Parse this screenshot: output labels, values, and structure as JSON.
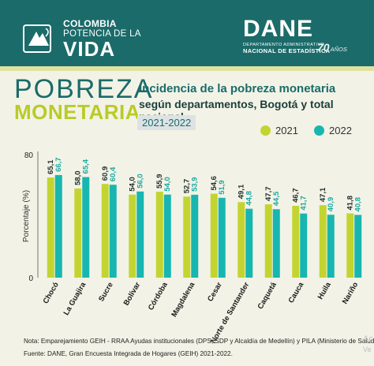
{
  "header": {
    "brand_line1": "COLOMBIA",
    "brand_line2": "POTENCIA DE LA",
    "brand_line3": "VIDA",
    "dane_name": "DANE",
    "dane_sub1": "DEPARTAMENTO ADMINISTRATIVO",
    "dane_sub2": "NACIONAL DE ESTADÍSTICA",
    "anniversary_number": "70",
    "anniversary_text": "AÑOS"
  },
  "title_main_line1": "POBREZA",
  "title_main_line2": "MONETARIA",
  "subtitle_line1": "Incidencia de la pobreza monetaria",
  "subtitle_line2": "según departamentos, Bogotá y total nacional",
  "years_badge": "2021-2022",
  "colors": {
    "teal": "#1b6b6a",
    "lime": "#c3d431",
    "cyan": "#18b6b0",
    "background": "#f2f3e6"
  },
  "chart_data": {
    "type": "bar",
    "ylabel": "Porcentaje (%)",
    "ylim": [
      0,
      80
    ],
    "yticks": [
      "0",
      "80"
    ],
    "categories": [
      "Chocó",
      "La Guajira",
      "Sucre",
      "Bolívar",
      "Córdoba",
      "Magdalena",
      "Cesar",
      "Norte de Santander",
      "Caquetá",
      "Cauca",
      "Huila",
      "Nariño"
    ],
    "series": [
      {
        "name": "2021",
        "color": "#c3d431",
        "values": [
          65.1,
          58.0,
          60.9,
          54.0,
          55.9,
          52.7,
          54.6,
          49.1,
          47.7,
          46.7,
          47.1,
          41.8
        ],
        "labels": [
          "65,1",
          "58,0",
          "60,9",
          "54,0",
          "55,9",
          "52,7",
          "54,6",
          "49,1",
          "47,7",
          "46,7",
          "47,1",
          "41,8"
        ]
      },
      {
        "name": "2022",
        "color": "#18b6b0",
        "values": [
          66.7,
          65.4,
          60.4,
          56.0,
          54.0,
          53.9,
          51.9,
          44.8,
          44.5,
          41.7,
          40.9,
          40.8
        ],
        "labels": [
          "66,7",
          "65,4",
          "60,4",
          "56,0",
          "54,0",
          "53,9",
          "51,9",
          "44,8",
          "44,5",
          "41,7",
          "40,9",
          "40,8"
        ]
      }
    ],
    "legend": "top-right"
  },
  "footer": {
    "note": "Nota: Emparejamiento GEIH - RRAA Ayudas institucionales (DPS, SDP y Alcaldía de Medellín) y PILA (Ministerio de Salud).",
    "source": "Fuente: DANE, Gran Encuesta Integrada de Hogares (GEIH) 2021-2022."
  },
  "watermark": {
    "line1": "Ac",
    "line2": "Ve"
  }
}
